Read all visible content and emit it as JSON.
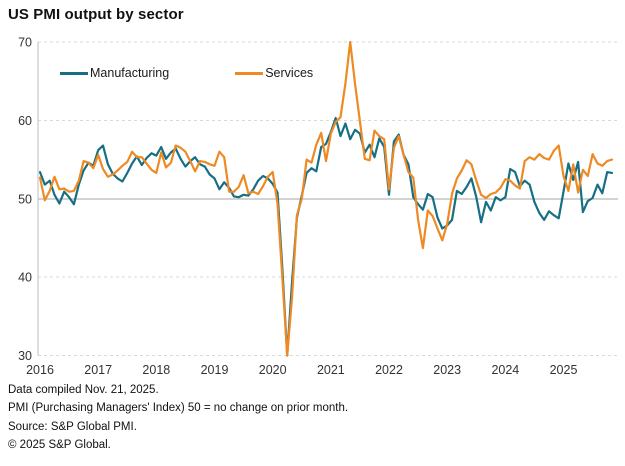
{
  "title": "US PMI output by sector",
  "footnotes": [
    "Data compiled Nov. 21, 2025.",
    "PMI (Purchasing Managers' Index) 50 = no change on prior month.",
    "Source: S&P Global PMI.",
    "© 2025 S&P Global."
  ],
  "colors": {
    "manufacturing": "#166f85",
    "services": "#ee8a23",
    "gridline": "#d9d9d9",
    "baseline_50": "#a6a6a6",
    "axis_line": "#bdbdbd",
    "tick_text": "#333333"
  },
  "chart_data": {
    "type": "line",
    "title": "US PMI output by sector",
    "frequency": "monthly",
    "x_start": "2016-01",
    "x_end": "2025-11",
    "x_tick_labels": [
      "2016",
      "2017",
      "2018",
      "2019",
      "2020",
      "2021",
      "2022",
      "2023",
      "2024",
      "2025"
    ],
    "ylim": [
      30,
      70
    ],
    "yticks": [
      30,
      40,
      50,
      60,
      70
    ],
    "baseline": 50,
    "grid": "horizontal dashed gridlines at 30/40/60/70, solid gray line at 50",
    "legend_position": "top-left inside plot",
    "clipping_note": "Apr 2020 trough and May 2021 Services peak are clipped at axis limits 30 and 70",
    "series": [
      {
        "name": "Manufacturing",
        "color": "#166f85",
        "values": [
          53.4,
          51.8,
          52.3,
          50.5,
          49.4,
          50.9,
          50.2,
          49.3,
          51.8,
          53.6,
          54.6,
          54.2,
          56.2,
          56.8,
          54.4,
          53.2,
          52.6,
          52.2,
          53.3,
          54.5,
          55.4,
          54.3,
          55.2,
          55.8,
          55.5,
          56.6,
          55.1,
          55.9,
          56.4,
          55.1,
          54.1,
          54.8,
          55.3,
          54.4,
          54.1,
          53.1,
          52.6,
          51.2,
          52.1,
          51.4,
          50.3,
          50.2,
          50.5,
          50.4,
          51.2,
          52.3,
          52.9,
          52.6,
          51.9,
          50.8,
          41.0,
          30.0,
          39.5,
          47.6,
          50.4,
          53.3,
          53.9,
          53.5,
          56.6,
          57.0,
          58.5,
          60.3,
          58.0,
          59.6,
          57.6,
          58.8,
          58.3,
          55.9,
          56.9,
          55.3,
          57.7,
          56.6,
          50.5,
          57.3,
          58.2,
          55.6,
          54.4,
          50.2,
          49.3,
          48.6,
          50.6,
          50.2,
          47.6,
          46.2,
          46.6,
          47.3,
          51.0,
          50.6,
          51.5,
          52.6,
          50.2,
          47.0,
          49.6,
          48.5,
          50.2,
          49.8,
          50.2,
          53.8,
          53.4,
          51.6,
          52.3,
          51.8,
          49.6,
          48.2,
          47.3,
          48.4,
          47.9,
          47.5,
          50.9,
          54.5,
          52.4,
          54.7,
          48.3,
          49.7,
          50.1,
          51.8,
          50.7,
          53.4,
          53.3
        ]
      },
      {
        "name": "Services",
        "color": "#ee8a23",
        "values": [
          52.7,
          49.8,
          51.0,
          52.8,
          51.2,
          51.3,
          50.9,
          51.0,
          52.3,
          54.8,
          54.6,
          53.9,
          55.6,
          53.8,
          52.8,
          53.1,
          53.6,
          54.2,
          54.7,
          56.0,
          55.3,
          55.3,
          54.5,
          53.7,
          53.3,
          55.9,
          54.0,
          54.6,
          56.8,
          56.5,
          56.0,
          54.8,
          53.5,
          54.8,
          54.7,
          54.4,
          54.2,
          56.0,
          55.3,
          50.9,
          50.9,
          51.5,
          53.0,
          50.7,
          50.9,
          50.6,
          51.6,
          52.8,
          53.4,
          49.4,
          39.8,
          30.0,
          37.5,
          47.9,
          50.0,
          55.0,
          54.6,
          56.9,
          58.4,
          54.8,
          58.3,
          59.8,
          60.4,
          64.7,
          70.0,
          64.6,
          59.9,
          55.1,
          54.9,
          58.7,
          58.0,
          57.6,
          51.2,
          56.5,
          58.0,
          55.6,
          53.4,
          52.7,
          47.3,
          43.7,
          48.5,
          47.8,
          46.2,
          44.7,
          46.8,
          50.6,
          52.6,
          53.6,
          54.9,
          54.4,
          52.3,
          50.5,
          50.1,
          50.6,
          50.8,
          51.4,
          52.5,
          52.3,
          51.7,
          51.3,
          54.8,
          55.3,
          55.0,
          55.7,
          55.2,
          55.0,
          56.1,
          56.8,
          52.9,
          51.0,
          54.4,
          50.8,
          53.7,
          52.9,
          55.7,
          54.5,
          54.2,
          54.8,
          55.0
        ]
      }
    ]
  }
}
